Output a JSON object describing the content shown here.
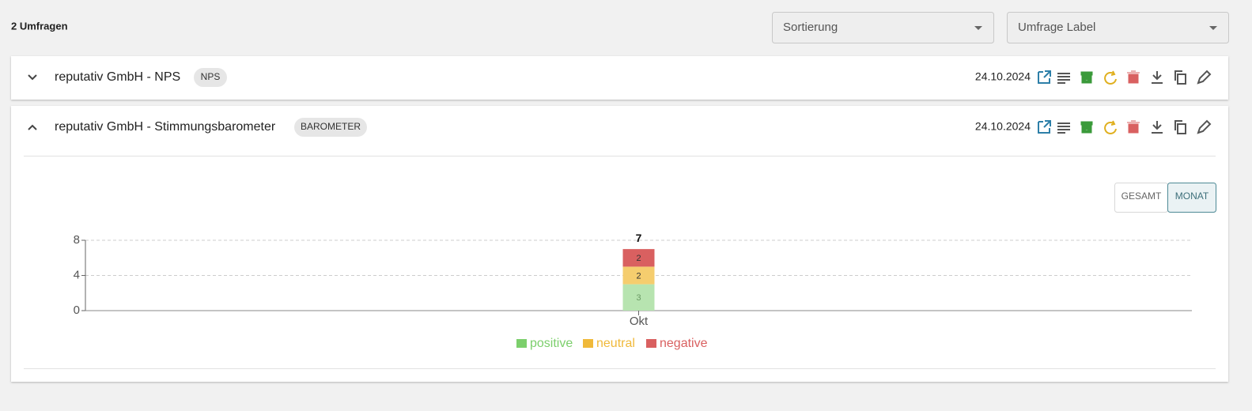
{
  "header": {
    "count_label": "2 Umfragen",
    "filters": [
      "Sortierung",
      "Umfrage Label"
    ]
  },
  "surveys": [
    {
      "title": "reputativ GmbH - NPS",
      "tag": "NPS",
      "date": "24.10.2024"
    },
    {
      "title": "reputativ GmbH - Stimmungsbarometer",
      "tag": "BAROMETER",
      "date": "24.10.2024"
    }
  ],
  "view_toggle": [
    "GESAMT",
    "MONAT"
  ],
  "chart_data": {
    "type": "bar",
    "stacked": true,
    "categories": [
      "Okt"
    ],
    "series": [
      {
        "name": "positive",
        "color": "#b7e4b0",
        "legend_color": "#7ccf6c",
        "values": [
          3
        ]
      },
      {
        "name": "neutral",
        "color": "#f5cd6e",
        "legend_color": "#f0b93a",
        "values": [
          2
        ]
      },
      {
        "name": "negative",
        "color": "#d96060",
        "legend_color": "#d96060",
        "values": [
          2
        ]
      }
    ],
    "totals": [
      7
    ],
    "ylim": [
      0,
      8
    ],
    "yticks": [
      0,
      4,
      8
    ],
    "grid": true
  }
}
